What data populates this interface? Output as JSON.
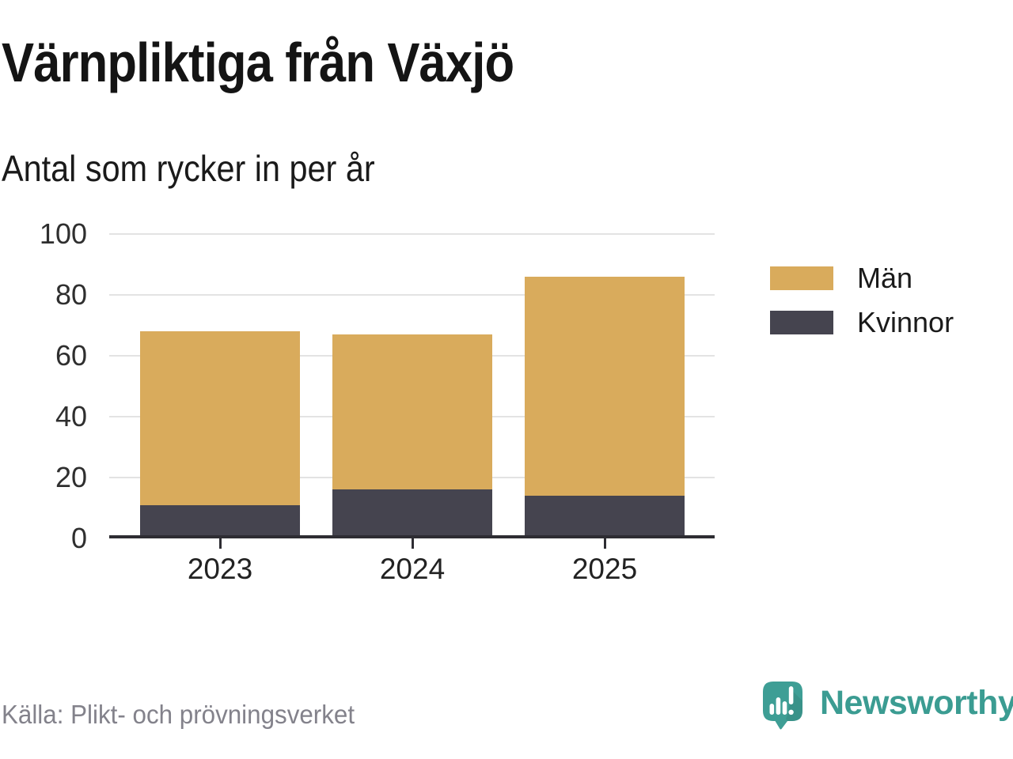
{
  "header": {
    "title": "Värnpliktiga från Växjö",
    "subtitle": "Antal som rycker in per år"
  },
  "chart_data": {
    "type": "bar",
    "stacked": true,
    "title": "Värnpliktiga från Växjö",
    "subtitle": "Antal som rycker in per år",
    "categories": [
      "2023",
      "2024",
      "2025"
    ],
    "series": [
      {
        "name": "Män",
        "color": "#d9ab5c",
        "values": [
          57,
          51,
          72
        ]
      },
      {
        "name": "Kvinnor",
        "color": "#45444f",
        "values": [
          11,
          16,
          14
        ]
      }
    ],
    "stack_order_bottom_to_top": [
      "Kvinnor",
      "Män"
    ],
    "stack_totals": [
      68,
      67,
      86
    ],
    "ylim": [
      0,
      100
    ],
    "yticks": [
      0,
      20,
      40,
      60,
      80,
      100
    ],
    "xlabel": "",
    "ylabel": "",
    "grid": true,
    "legend_position": "right"
  },
  "footer": {
    "source": "Källa: Plikt- och prövningsverket",
    "brand": "Newsworthy"
  },
  "colors": {
    "background": "#ffffff",
    "men": "#d9ab5c",
    "women": "#45444f",
    "axis": "#2e2d33",
    "grid": "#e3e3e3",
    "text": "#1a1a1a",
    "muted_text": "#83828b",
    "brand_teal": "#3b9c92"
  }
}
